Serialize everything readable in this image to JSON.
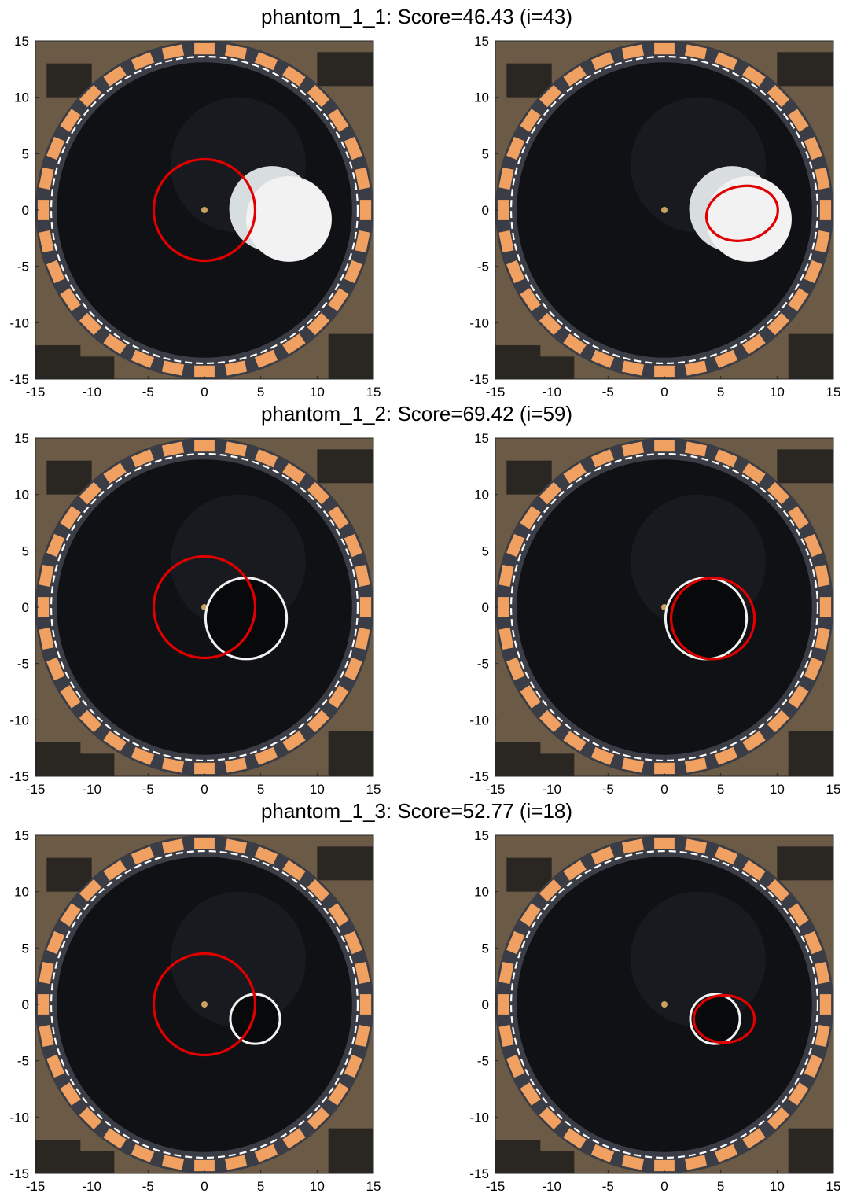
{
  "figure": {
    "rows": [
      {
        "title": "phantom_1_1: Score=46.43 (i=43)",
        "target": {
          "type": "disk",
          "cx": 7.5,
          "cy": -0.8,
          "r": 3.8,
          "style": "solid-white-cylinder"
        },
        "left": {
          "circle": {
            "cx": 0.0,
            "cy": 0.0,
            "rx": 4.5,
            "ry": 4.5,
            "angle": 0
          }
        },
        "right": {
          "circle": {
            "cx": 6.9,
            "cy": -0.3,
            "rx": 3.2,
            "ry": 2.4,
            "angle": 12
          }
        }
      },
      {
        "title": "phantom_1_2: Score=69.42 (i=59)",
        "target": {
          "type": "ring",
          "cx": 3.7,
          "cy": -1.0,
          "r": 3.6,
          "style": "hollow-ring"
        },
        "left": {
          "circle": {
            "cx": 0.0,
            "cy": 0.0,
            "rx": 4.5,
            "ry": 4.5,
            "angle": 0
          }
        },
        "right": {
          "circle": {
            "cx": 4.3,
            "cy": -1.0,
            "rx": 3.7,
            "ry": 3.6,
            "angle": 0
          }
        }
      },
      {
        "title": "phantom_1_3: Score=52.77 (i=18)",
        "target": {
          "type": "ring",
          "cx": 4.5,
          "cy": -1.3,
          "r": 2.2,
          "style": "hollow-ring"
        },
        "left": {
          "circle": {
            "cx": 0.0,
            "cy": 0.0,
            "rx": 4.5,
            "ry": 4.5,
            "angle": 0
          }
        },
        "right": {
          "circle": {
            "cx": 5.3,
            "cy": -1.3,
            "rx": 2.7,
            "ry": 2.1,
            "angle": 0
          }
        }
      }
    ]
  },
  "chart_data": {
    "type": "scatter",
    "xlim": [
      -15,
      15
    ],
    "ylim": [
      -15,
      15
    ],
    "xticks": [
      -15,
      -10,
      -5,
      0,
      5,
      10,
      15
    ],
    "yticks": [
      15,
      10,
      5,
      0,
      -5,
      -10,
      -15
    ],
    "grid": false,
    "overlay_color": "#e10000",
    "target_color": "#f2f2f2"
  },
  "colors": {
    "tank": "#101114",
    "rim": "#3a3d45",
    "electrode": "#f0a060",
    "background": "#6b5a46"
  }
}
